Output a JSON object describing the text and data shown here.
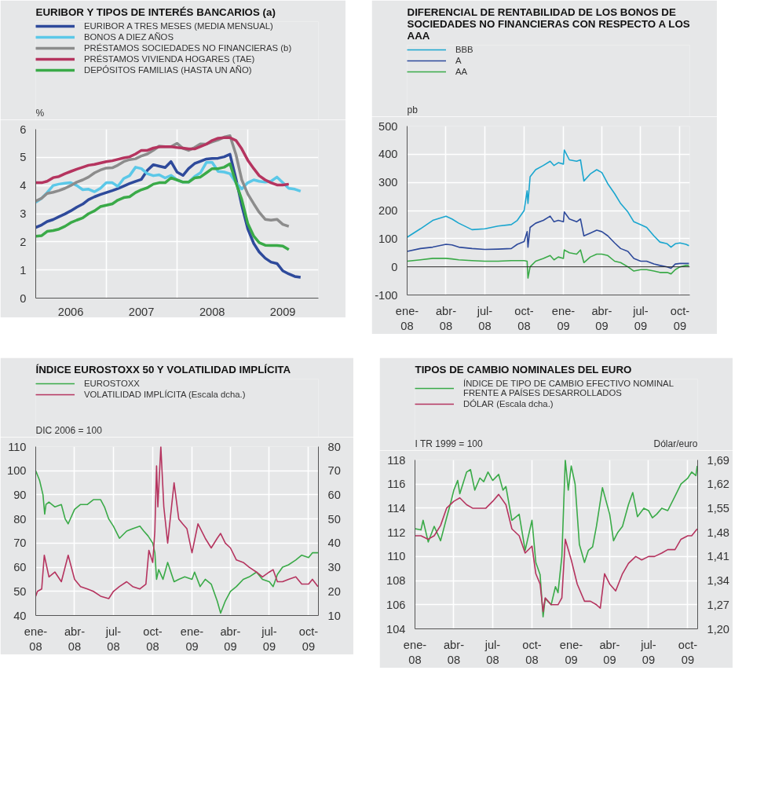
{
  "chart_data": [
    {
      "type": "line",
      "title": "EURIBOR Y TIPOS DE INTERÉS BANCARIOS (a)",
      "ylabel": "%",
      "legend": "top",
      "grid": true,
      "x": [
        "2006-01",
        "2006-02",
        "2006-03",
        "2006-04",
        "2006-05",
        "2006-06",
        "2006-07",
        "2006-08",
        "2006-09",
        "2006-10",
        "2006-11",
        "2006-12",
        "2007-01",
        "2007-02",
        "2007-03",
        "2007-04",
        "2007-05",
        "2007-06",
        "2007-07",
        "2007-08",
        "2007-09",
        "2007-10",
        "2007-11",
        "2007-12",
        "2008-01",
        "2008-02",
        "2008-03",
        "2008-04",
        "2008-05",
        "2008-06",
        "2008-07",
        "2008-08",
        "2008-09",
        "2008-10",
        "2008-11",
        "2008-12",
        "2009-01",
        "2009-02",
        "2009-03",
        "2009-04",
        "2009-05",
        "2009-06",
        "2009-07",
        "2009-08",
        "2009-09",
        "2009-10"
      ],
      "xlim": [
        "2006-01",
        "2010-01"
      ],
      "xticks": [
        {
          "value": "2006-01",
          "label": null
        },
        {
          "value": "2006-07",
          "label": "2006"
        },
        {
          "value": "2007-01",
          "label": null
        },
        {
          "value": "2007-07",
          "label": "2007"
        },
        {
          "value": "2008-01",
          "label": null
        },
        {
          "value": "2008-07",
          "label": "2008"
        },
        {
          "value": "2009-01",
          "label": null
        },
        {
          "value": "2009-07",
          "label": "2009"
        },
        {
          "value": "2010-01",
          "label": null
        }
      ],
      "ylim": [
        0,
        6
      ],
      "yticks": [
        0,
        1,
        2,
        3,
        4,
        5,
        6
      ],
      "series": [
        {
          "name": "EURIBOR A TRES MESES (MEDIA MENSUAL)",
          "color": "#2e4a9b",
          "values": [
            2.51,
            2.6,
            2.72,
            2.79,
            2.89,
            2.99,
            3.1,
            3.23,
            3.34,
            3.5,
            3.6,
            3.68,
            3.75,
            3.82,
            3.89,
            3.98,
            4.07,
            4.15,
            4.22,
            4.54,
            4.74,
            4.69,
            4.64,
            4.85,
            4.48,
            4.36,
            4.6,
            4.78,
            4.86,
            4.94,
            4.96,
            4.97,
            5.02,
            5.11,
            4.24,
            3.29,
            2.46,
            1.94,
            1.64,
            1.42,
            1.28,
            1.23,
            0.97,
            0.86,
            0.77,
            0.74
          ]
        },
        {
          "name": "BONOS A DIEZ AÑOS",
          "color": "#5bc8e8",
          "values": [
            3.4,
            3.55,
            3.75,
            4.0,
            4.05,
            4.08,
            4.1,
            4.0,
            3.85,
            3.87,
            3.78,
            3.9,
            4.1,
            4.1,
            3.97,
            4.25,
            4.35,
            4.65,
            4.6,
            4.42,
            4.35,
            4.38,
            4.27,
            4.36,
            4.2,
            4.12,
            4.12,
            4.32,
            4.45,
            4.82,
            4.82,
            4.5,
            4.48,
            4.42,
            4.1,
            3.88,
            4.1,
            4.2,
            4.15,
            4.12,
            4.15,
            4.3,
            4.1,
            3.9,
            3.87,
            3.8
          ]
        },
        {
          "name": "PRÉSTAMOS SOCIEDADES NO FINANCIERAS (b)",
          "color": "#8c8c8c",
          "values": [
            3.45,
            3.55,
            3.72,
            3.76,
            3.82,
            3.9,
            4.0,
            4.12,
            4.2,
            4.3,
            4.45,
            4.55,
            4.62,
            4.63,
            4.72,
            4.85,
            4.92,
            4.95,
            5.05,
            5.12,
            5.25,
            5.4,
            5.38,
            5.38,
            5.5,
            5.32,
            5.25,
            5.35,
            5.48,
            5.47,
            5.55,
            5.62,
            5.72,
            5.77,
            5.1,
            4.2,
            3.7,
            3.35,
            3.05,
            2.8,
            2.77,
            2.8,
            2.62,
            2.55,
            null,
            null
          ]
        },
        {
          "name": "PRÉSTAMOS VIVIENDA HOGARES (TAE)",
          "color": "#b5345f",
          "values": [
            4.1,
            4.1,
            4.15,
            4.28,
            4.32,
            4.42,
            4.5,
            4.58,
            4.65,
            4.72,
            4.75,
            4.8,
            4.85,
            4.88,
            4.93,
            4.98,
            5.02,
            5.12,
            5.25,
            5.25,
            5.33,
            5.37,
            5.38,
            5.38,
            5.35,
            5.33,
            5.3,
            5.3,
            5.38,
            5.47,
            5.6,
            5.68,
            5.7,
            5.7,
            5.6,
            5.3,
            4.9,
            4.6,
            4.35,
            4.2,
            4.1,
            4.02,
            4.02,
            4.05,
            null,
            null
          ]
        },
        {
          "name": "DEPÓSITOS FAMILIAS (HASTA UN AÑO)",
          "color": "#3aaa48",
          "values": [
            2.2,
            2.22,
            2.37,
            2.4,
            2.45,
            2.55,
            2.68,
            2.77,
            2.85,
            3.0,
            3.1,
            3.25,
            3.3,
            3.35,
            3.48,
            3.57,
            3.6,
            3.75,
            3.85,
            3.92,
            4.05,
            4.1,
            4.1,
            4.27,
            4.2,
            4.12,
            4.12,
            4.27,
            4.3,
            4.45,
            4.6,
            4.6,
            4.65,
            4.77,
            4.1,
            3.5,
            2.65,
            2.2,
            1.97,
            1.88,
            1.87,
            1.87,
            1.85,
            1.72,
            null,
            null
          ]
        }
      ]
    },
    {
      "type": "line",
      "title": "DIFERENCIAL DE RENTABILIDAD DE LOS BONOS DE SOCIEDADES NO FINANCIERAS CON RESPECTO A LOS AAA",
      "ylabel": "pb",
      "legend": "top",
      "grid": true,
      "x": [
        "2008-01-01",
        "2008-02-01",
        "2008-03-01",
        "2008-04-01",
        "2008-04-15",
        "2008-05-01",
        "2008-06-01",
        "2008-07-01",
        "2008-08-01",
        "2008-09-01",
        "2008-09-15",
        "2008-10-01",
        "2008-10-08",
        "2008-10-10",
        "2008-10-15",
        "2008-10-28",
        "2008-11-15",
        "2008-12-01",
        "2008-12-10",
        "2008-12-20",
        "2009-01-01",
        "2009-01-03",
        "2009-01-15",
        "2009-02-01",
        "2009-02-10",
        "2009-02-18",
        "2009-03-05",
        "2009-03-20",
        "2009-04-01",
        "2009-04-15",
        "2009-05-01",
        "2009-05-15",
        "2009-06-01",
        "2009-06-15",
        "2009-07-01",
        "2009-07-15",
        "2009-08-01",
        "2009-08-15",
        "2009-09-01",
        "2009-09-10",
        "2009-09-20",
        "2009-10-01",
        "2009-10-15",
        "2009-10-22"
      ],
      "xlim": [
        "2008-01-01",
        "2009-10-24"
      ],
      "xticks": [
        {
          "value": "2008-01-01",
          "label": "ene-08"
        },
        {
          "value": "2008-04-01",
          "label": "abr-08"
        },
        {
          "value": "2008-07-01",
          "label": "jul-08"
        },
        {
          "value": "2008-10-01",
          "label": "oct-08"
        },
        {
          "value": "2009-01-01",
          "label": "ene-09"
        },
        {
          "value": "2009-04-01",
          "label": "abr-09"
        },
        {
          "value": "2009-07-01",
          "label": "jul-09"
        },
        {
          "value": "2009-10-01",
          "label": "oct-09"
        }
      ],
      "ylim": [
        -100,
        500
      ],
      "yticks": [
        -100,
        0,
        100,
        200,
        300,
        400,
        500
      ],
      "ref_lines": [
        {
          "axis": "y",
          "value": 0,
          "color": "#222222"
        }
      ],
      "series": [
        {
          "name": "BBB",
          "color": "#1aa6cf",
          "values": [
            105,
            135,
            165,
            180,
            170,
            155,
            132,
            135,
            145,
            150,
            165,
            200,
            270,
            225,
            320,
            345,
            360,
            375,
            360,
            370,
            365,
            415,
            380,
            375,
            380,
            305,
            330,
            345,
            335,
            295,
            260,
            225,
            195,
            160,
            150,
            140,
            110,
            88,
            82,
            70,
            82,
            85,
            80,
            75
          ]
        },
        {
          "name": "A",
          "color": "#2e4a9b",
          "values": [
            55,
            65,
            70,
            80,
            78,
            70,
            65,
            62,
            63,
            65,
            80,
            90,
            125,
            70,
            140,
            155,
            165,
            180,
            160,
            165,
            160,
            195,
            170,
            160,
            170,
            110,
            120,
            130,
            125,
            110,
            85,
            65,
            55,
            30,
            20,
            20,
            10,
            5,
            0,
            -5,
            10,
            12,
            12,
            12
          ]
        },
        {
          "name": "AA",
          "color": "#3aaa48",
          "values": [
            20,
            25,
            30,
            30,
            28,
            25,
            22,
            20,
            20,
            22,
            22,
            22,
            20,
            -40,
            0,
            20,
            30,
            40,
            25,
            35,
            30,
            60,
            50,
            45,
            60,
            15,
            35,
            45,
            45,
            40,
            20,
            15,
            0,
            -15,
            -10,
            -10,
            -15,
            -20,
            -20,
            -25,
            -10,
            0,
            5,
            5
          ]
        }
      ]
    },
    {
      "type": "line",
      "title": "ÍNDICE EUROSTOXX 50 Y VOLATILIDAD IMPLÍCITA",
      "ylabel": "DIC 2006 = 100",
      "legend": "top",
      "grid": true,
      "xlim": [
        "2008-01-01",
        "2009-10-24"
      ],
      "xticks": [
        {
          "value": "2008-01-01",
          "label": "ene-08"
        },
        {
          "value": "2008-04-01",
          "label": "abr-08"
        },
        {
          "value": "2008-07-01",
          "label": "jul-08"
        },
        {
          "value": "2008-10-01",
          "label": "oct-08"
        },
        {
          "value": "2009-01-01",
          "label": "ene-09"
        },
        {
          "value": "2009-04-01",
          "label": "abr-09"
        },
        {
          "value": "2009-07-01",
          "label": "jul-09"
        },
        {
          "value": "2009-10-01",
          "label": "oct-09"
        }
      ],
      "ylim": [
        40,
        110
      ],
      "yticks": [
        40,
        50,
        60,
        70,
        80,
        90,
        100,
        110
      ],
      "y2lim": [
        10,
        80
      ],
      "y2ticks": [
        10,
        20,
        30,
        40,
        50,
        60,
        70,
        80
      ],
      "series": [
        {
          "name": "EUROSTOXX",
          "color": "#3aaa48",
          "x": [
            "2008-01-01",
            "2008-01-10",
            "2008-01-18",
            "2008-01-22",
            "2008-01-25",
            "2008-02-01",
            "2008-02-15",
            "2008-03-01",
            "2008-03-10",
            "2008-03-17",
            "2008-04-01",
            "2008-04-15",
            "2008-05-01",
            "2008-05-15",
            "2008-06-01",
            "2008-06-10",
            "2008-06-20",
            "2008-07-01",
            "2008-07-15",
            "2008-08-01",
            "2008-08-15",
            "2008-09-01",
            "2008-09-10",
            "2008-09-20",
            "2008-10-01",
            "2008-10-06",
            "2008-10-10",
            "2008-10-15",
            "2008-10-25",
            "2008-11-05",
            "2008-11-20",
            "2008-12-01",
            "2008-12-15",
            "2009-01-01",
            "2009-01-07",
            "2009-01-20",
            "2009-02-01",
            "2009-02-15",
            "2009-03-01",
            "2009-03-09",
            "2009-03-20",
            "2009-04-01",
            "2009-04-15",
            "2009-05-01",
            "2009-05-15",
            "2009-06-01",
            "2009-06-15",
            "2009-07-01",
            "2009-07-10",
            "2009-07-20",
            "2009-08-01",
            "2009-08-15",
            "2009-09-01",
            "2009-09-15",
            "2009-10-01",
            "2009-10-10",
            "2009-10-23"
          ],
          "values": [
            100,
            96,
            90,
            82,
            86,
            87,
            85,
            86,
            80,
            78,
            84,
            86,
            86,
            88,
            88,
            85,
            80,
            77,
            72,
            75,
            76,
            77,
            75,
            73,
            70,
            66,
            55,
            59,
            55,
            62,
            54,
            55,
            56,
            55,
            58,
            52,
            55,
            53,
            46,
            41,
            46,
            50,
            52,
            55,
            56,
            58,
            55,
            54,
            52,
            57,
            60,
            61,
            63,
            65,
            64,
            66,
            66
          ]
        },
        {
          "name": "VOLATILIDAD IMPLÍCITA (Escala dcha.)",
          "color": "#b5345f",
          "axis": "y2",
          "x": [
            "2008-01-01",
            "2008-01-05",
            "2008-01-15",
            "2008-01-21",
            "2008-02-01",
            "2008-02-15",
            "2008-03-01",
            "2008-03-17",
            "2008-04-01",
            "2008-04-15",
            "2008-05-01",
            "2008-05-15",
            "2008-06-01",
            "2008-06-20",
            "2008-07-01",
            "2008-07-15",
            "2008-08-01",
            "2008-08-15",
            "2008-09-01",
            "2008-09-15",
            "2008-09-22",
            "2008-10-01",
            "2008-10-06",
            "2008-10-10",
            "2008-10-13",
            "2008-10-20",
            "2008-10-27",
            "2008-11-05",
            "2008-11-20",
            "2008-12-01",
            "2008-12-10",
            "2008-12-20",
            "2009-01-01",
            "2009-01-15",
            "2009-02-01",
            "2009-02-15",
            "2009-03-01",
            "2009-03-09",
            "2009-03-20",
            "2009-04-01",
            "2009-04-15",
            "2009-05-01",
            "2009-05-15",
            "2009-06-01",
            "2009-06-15",
            "2009-07-01",
            "2009-07-10",
            "2009-07-20",
            "2009-08-01",
            "2009-08-15",
            "2009-09-01",
            "2009-09-15",
            "2009-10-01",
            "2009-10-10",
            "2009-10-23"
          ],
          "values": [
            18,
            20,
            21,
            35,
            26,
            28,
            24,
            35,
            25,
            22,
            21,
            20,
            18,
            17,
            20,
            22,
            24,
            22,
            21,
            23,
            37,
            32,
            45,
            72,
            55,
            80,
            55,
            40,
            65,
            50,
            48,
            46,
            36,
            48,
            42,
            38,
            42,
            44,
            40,
            38,
            33,
            32,
            30,
            28,
            26,
            28,
            29,
            24,
            24,
            25,
            26,
            23,
            23,
            25,
            22
          ]
        }
      ]
    },
    {
      "type": "line",
      "title": "TIPOS DE CAMBIO NOMINALES DEL EURO",
      "ylabel": "I TR 1999 = 100",
      "y2label": "Dólar/euro",
      "legend": "top",
      "grid": true,
      "xlim": [
        "2008-01-01",
        "2009-10-24"
      ],
      "xticks": [
        {
          "value": "2008-01-01",
          "label": "ene-08"
        },
        {
          "value": "2008-04-01",
          "label": "abr-08"
        },
        {
          "value": "2008-07-01",
          "label": "jul-08"
        },
        {
          "value": "2008-10-01",
          "label": "oct-08"
        },
        {
          "value": "2009-01-01",
          "label": "ene-09"
        },
        {
          "value": "2009-04-01",
          "label": "abr-09"
        },
        {
          "value": "2009-07-01",
          "label": "jul-09"
        },
        {
          "value": "2009-10-01",
          "label": "oct-09"
        }
      ],
      "ylim": [
        104,
        118
      ],
      "yticks": [
        104,
        106,
        108,
        110,
        112,
        114,
        116,
        118
      ],
      "y2lim": [
        1.2,
        1.69
      ],
      "y2ticks": [
        {
          "value": 1.2,
          "label": "1,20"
        },
        {
          "value": 1.27,
          "label": "1,27"
        },
        {
          "value": 1.34,
          "label": "1,34"
        },
        {
          "value": 1.41,
          "label": "1,41"
        },
        {
          "value": 1.48,
          "label": "1,48"
        },
        {
          "value": 1.55,
          "label": "1,55"
        },
        {
          "value": 1.62,
          "label": "1,62"
        },
        {
          "value": 1.69,
          "label": "1,69"
        }
      ],
      "series": [
        {
          "name": "ÍNDICE DE TIPO DE CAMBIO EFECTIVO NOMINAL FRENTE A PAÍSES DESARROLLADOS",
          "color": "#3aaa48",
          "x": [
            "2008-01-01",
            "2008-01-15",
            "2008-01-20",
            "2008-02-01",
            "2008-02-15",
            "2008-03-01",
            "2008-03-15",
            "2008-03-25",
            "2008-04-01",
            "2008-04-10",
            "2008-04-15",
            "2008-05-01",
            "2008-05-10",
            "2008-05-20",
            "2008-06-01",
            "2008-06-10",
            "2008-06-20",
            "2008-07-01",
            "2008-07-15",
            "2008-07-25",
            "2008-08-01",
            "2008-08-15",
            "2008-09-01",
            "2008-09-15",
            "2008-10-01",
            "2008-10-10",
            "2008-10-20",
            "2008-10-27",
            "2008-11-01",
            "2008-11-15",
            "2008-11-25",
            "2008-12-01",
            "2008-12-10",
            "2008-12-18",
            "2008-12-25",
            "2009-01-01",
            "2009-01-10",
            "2009-01-20",
            "2009-02-01",
            "2009-02-10",
            "2009-02-20",
            "2009-03-01",
            "2009-03-15",
            "2009-04-01",
            "2009-04-10",
            "2009-04-20",
            "2009-05-01",
            "2009-05-15",
            "2009-05-25",
            "2009-06-05",
            "2009-06-20",
            "2009-07-01",
            "2009-07-10",
            "2009-07-20",
            "2009-08-01",
            "2009-08-15",
            "2009-09-01",
            "2009-09-15",
            "2009-10-01",
            "2009-10-10",
            "2009-10-20",
            "2009-10-23"
          ],
          "values": [
            112.3,
            112.2,
            113,
            111.2,
            112.5,
            111.3,
            113.2,
            114.5,
            115.5,
            116.3,
            115.2,
            117,
            117.2,
            115.5,
            116.5,
            116.2,
            117,
            116.3,
            116.8,
            115.5,
            115.8,
            113,
            113.5,
            110.5,
            113,
            109.5,
            108.5,
            105,
            106.5,
            106,
            107.5,
            107,
            110,
            118,
            115.5,
            117.5,
            116,
            111,
            109.5,
            110.5,
            110.8,
            112.5,
            115.7,
            113.5,
            111.3,
            112,
            112.5,
            114.3,
            115.3,
            113.3,
            114,
            113.8,
            113.2,
            113.5,
            114,
            113.8,
            115,
            116,
            116.5,
            117,
            116.7,
            117.5
          ]
        },
        {
          "name": "DÓLAR (Escala dcha.)",
          "color": "#b5345f",
          "axis": "y2",
          "x": [
            "2008-01-01",
            "2008-01-15",
            "2008-02-01",
            "2008-02-15",
            "2008-03-01",
            "2008-03-15",
            "2008-04-01",
            "2008-04-15",
            "2008-05-01",
            "2008-05-15",
            "2008-06-01",
            "2008-06-15",
            "2008-07-01",
            "2008-07-15",
            "2008-08-01",
            "2008-08-15",
            "2008-09-01",
            "2008-09-15",
            "2008-10-01",
            "2008-10-10",
            "2008-10-20",
            "2008-10-27",
            "2008-11-01",
            "2008-11-15",
            "2008-12-01",
            "2008-12-10",
            "2008-12-18",
            "2009-01-01",
            "2009-01-15",
            "2009-02-01",
            "2009-02-15",
            "2009-03-01",
            "2009-03-10",
            "2009-03-20",
            "2009-04-01",
            "2009-04-15",
            "2009-05-01",
            "2009-05-15",
            "2009-06-01",
            "2009-06-15",
            "2009-07-01",
            "2009-07-15",
            "2009-08-01",
            "2009-08-15",
            "2009-09-01",
            "2009-09-15",
            "2009-10-01",
            "2009-10-10",
            "2009-10-23"
          ],
          "values": [
            1.47,
            1.47,
            1.46,
            1.47,
            1.5,
            1.55,
            1.57,
            1.58,
            1.56,
            1.55,
            1.55,
            1.55,
            1.57,
            1.59,
            1.56,
            1.49,
            1.47,
            1.42,
            1.44,
            1.36,
            1.33,
            1.25,
            1.29,
            1.27,
            1.27,
            1.29,
            1.46,
            1.4,
            1.33,
            1.28,
            1.28,
            1.27,
            1.26,
            1.36,
            1.33,
            1.31,
            1.36,
            1.39,
            1.41,
            1.4,
            1.41,
            1.41,
            1.42,
            1.43,
            1.43,
            1.46,
            1.47,
            1.47,
            1.49
          ]
        }
      ]
    }
  ]
}
